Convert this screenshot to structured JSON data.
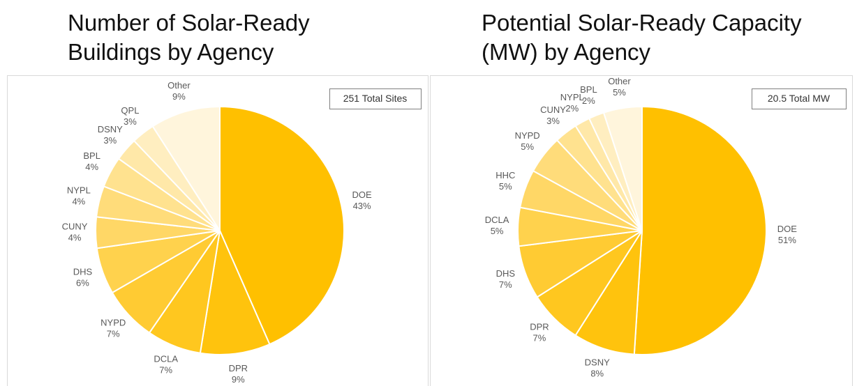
{
  "chart_data": [
    {
      "type": "pie",
      "title": "Number of Solar-Ready Buildings by Agency",
      "annotation": "251 Total Sites",
      "categories": [
        "DOE",
        "DPR",
        "DCLA",
        "NYPD",
        "DHS",
        "CUNY",
        "NYPL",
        "BPL",
        "DSNY",
        "QPL",
        "Other"
      ],
      "values": [
        43,
        9,
        7,
        7,
        6,
        4,
        4,
        4,
        3,
        3,
        9
      ],
      "value_labels": [
        "43%",
        "9%",
        "7%",
        "7%",
        "6%",
        "4%",
        "4%",
        "4%",
        "3%",
        "3%",
        "9%"
      ],
      "colors": [
        "#FFC000",
        "#FFC30D",
        "#FFC71F",
        "#FFCB33",
        "#FFD24D",
        "#FFD766",
        "#FFDC7A",
        "#FFE28F",
        "#FFE8A8",
        "#FFEEC0",
        "#FFF5DC"
      ]
    },
    {
      "type": "pie",
      "title": "Potential Solar-Ready Capacity (MW) by Agency",
      "annotation": "20.5  Total MW",
      "categories": [
        "DOE",
        "DSNY",
        "DPR",
        "DHS",
        "DCLA",
        "HHC",
        "NYPD",
        "CUNY",
        "NYPL",
        "BPL",
        "Other"
      ],
      "values": [
        51,
        8,
        7,
        7,
        5,
        5,
        5,
        3,
        2,
        2,
        5
      ],
      "value_labels": [
        "51%",
        "8%",
        "7%",
        "7%",
        "5%",
        "5%",
        "5%",
        "3%",
        "2%",
        "2%",
        "5%"
      ],
      "colors": [
        "#FFC000",
        "#FFC30D",
        "#FFC71F",
        "#FFCB33",
        "#FFD24D",
        "#FFD766",
        "#FFDC7A",
        "#FFE28F",
        "#FFE8A8",
        "#FFEEC0",
        "#FFF5DC"
      ]
    }
  ]
}
